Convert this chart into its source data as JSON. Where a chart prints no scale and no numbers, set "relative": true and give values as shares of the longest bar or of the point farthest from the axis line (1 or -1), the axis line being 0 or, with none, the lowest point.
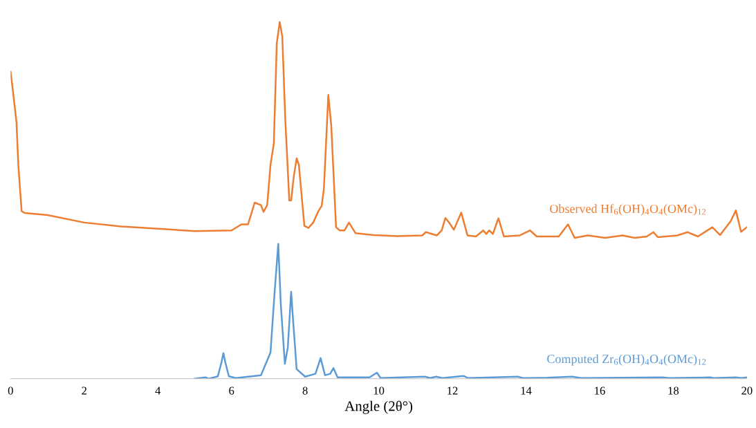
{
  "chart_data": {
    "type": "line",
    "relative": true,
    "xlabel": "Angle (2θ°)",
    "xlim": [
      0,
      20
    ],
    "xticks": [
      0,
      2,
      4,
      6,
      8,
      10,
      12,
      14,
      16,
      18,
      20
    ],
    "grid": false,
    "legend": false,
    "marker": "none",
    "line_style": "solid",
    "series": [
      {
        "name": "Observed Hf$_{6}$(OH)$_{4}$O$_{4}$(OMc)$_{12}$",
        "color": "#ed7d31",
        "x": [
          0,
          0.06,
          0.16,
          0.21,
          0.3,
          0.38,
          1,
          2,
          3,
          4,
          5,
          6,
          6.27,
          6.45,
          6.63,
          6.8,
          6.87,
          6.97,
          7.06,
          7.15,
          7.23,
          7.31,
          7.38,
          7.46,
          7.57,
          7.62,
          7.69,
          7.77,
          7.83,
          7.98,
          8.09,
          8.22,
          8.35,
          8.45,
          8.51,
          8.63,
          8.71,
          8.84,
          8.94,
          9.07,
          9.19,
          9.37,
          9.86,
          10.5,
          11.18,
          11.28,
          11.58,
          11.71,
          11.81,
          11.91,
          12.04,
          12.24,
          12.41,
          12.64,
          12.84,
          12.92,
          13.0,
          13.1,
          13.25,
          13.4,
          13.83,
          14.11,
          14.29,
          14.89,
          15.14,
          15.32,
          15.68,
          16.15,
          16.62,
          16.95,
          17.28,
          17.46,
          17.58,
          18.11,
          18.39,
          18.67,
          19.06,
          19.27,
          19.56,
          19.7,
          19.84,
          20.0
        ],
        "values": [
          0.861,
          0.81,
          0.72,
          0.6,
          0.47,
          0.465,
          0.459,
          0.438,
          0.427,
          0.421,
          0.414,
          0.416,
          0.433,
          0.433,
          0.494,
          0.487,
          0.468,
          0.487,
          0.6,
          0.659,
          0.94,
          1.0,
          0.96,
          0.73,
          0.5,
          0.5,
          0.566,
          0.618,
          0.6,
          0.429,
          0.423,
          0.438,
          0.468,
          0.485,
          0.533,
          0.796,
          0.71,
          0.425,
          0.416,
          0.416,
          0.438,
          0.408,
          0.403,
          0.4,
          0.402,
          0.411,
          0.402,
          0.416,
          0.451,
          0.438,
          0.418,
          0.466,
          0.402,
          0.399,
          0.416,
          0.406,
          0.416,
          0.406,
          0.45,
          0.399,
          0.402,
          0.416,
          0.399,
          0.399,
          0.433,
          0.395,
          0.402,
          0.395,
          0.402,
          0.395,
          0.399,
          0.411,
          0.397,
          0.402,
          0.411,
          0.399,
          0.425,
          0.403,
          0.442,
          0.472,
          0.412,
          0.425
        ]
      },
      {
        "name": "Computed Zr$_{6}$(OH)$_{4}$O$_{4}$(OMc)$_{12}$",
        "color": "#5b9bd5",
        "x": [
          5.0,
          5.29,
          5.39,
          5.63,
          5.73,
          5.78,
          5.83,
          5.93,
          6.12,
          6.8,
          7.06,
          7.17,
          7.27,
          7.34,
          7.45,
          7.53,
          7.62,
          7.68,
          7.77,
          8.0,
          8.28,
          8.42,
          8.54,
          8.68,
          8.77,
          8.88,
          9.75,
          9.95,
          10.05,
          10.62,
          11.26,
          11.39,
          11.56,
          11.73,
          12.3,
          12.43,
          13.78,
          13.91,
          14.57,
          15.25,
          15.5,
          17.7,
          17.9,
          19.0,
          19.1,
          19.7,
          19.85,
          20.0
        ],
        "values": [
          0,
          0.004,
          0,
          0.007,
          0.047,
          0.072,
          0.047,
          0.007,
          0.002,
          0.01,
          0.074,
          0.241,
          0.378,
          0.208,
          0.042,
          0.088,
          0.244,
          0.154,
          0.027,
          0.006,
          0.014,
          0.058,
          0.01,
          0.014,
          0.03,
          0.004,
          0.004,
          0.017,
          0.002,
          0.004,
          0.006,
          0.002,
          0.006,
          0.002,
          0.008,
          0.002,
          0.006,
          0.002,
          0.003,
          0.006,
          0.002,
          0.004,
          0.002,
          0.004,
          0.002,
          0.004,
          0.002,
          0.004
        ]
      }
    ]
  }
}
